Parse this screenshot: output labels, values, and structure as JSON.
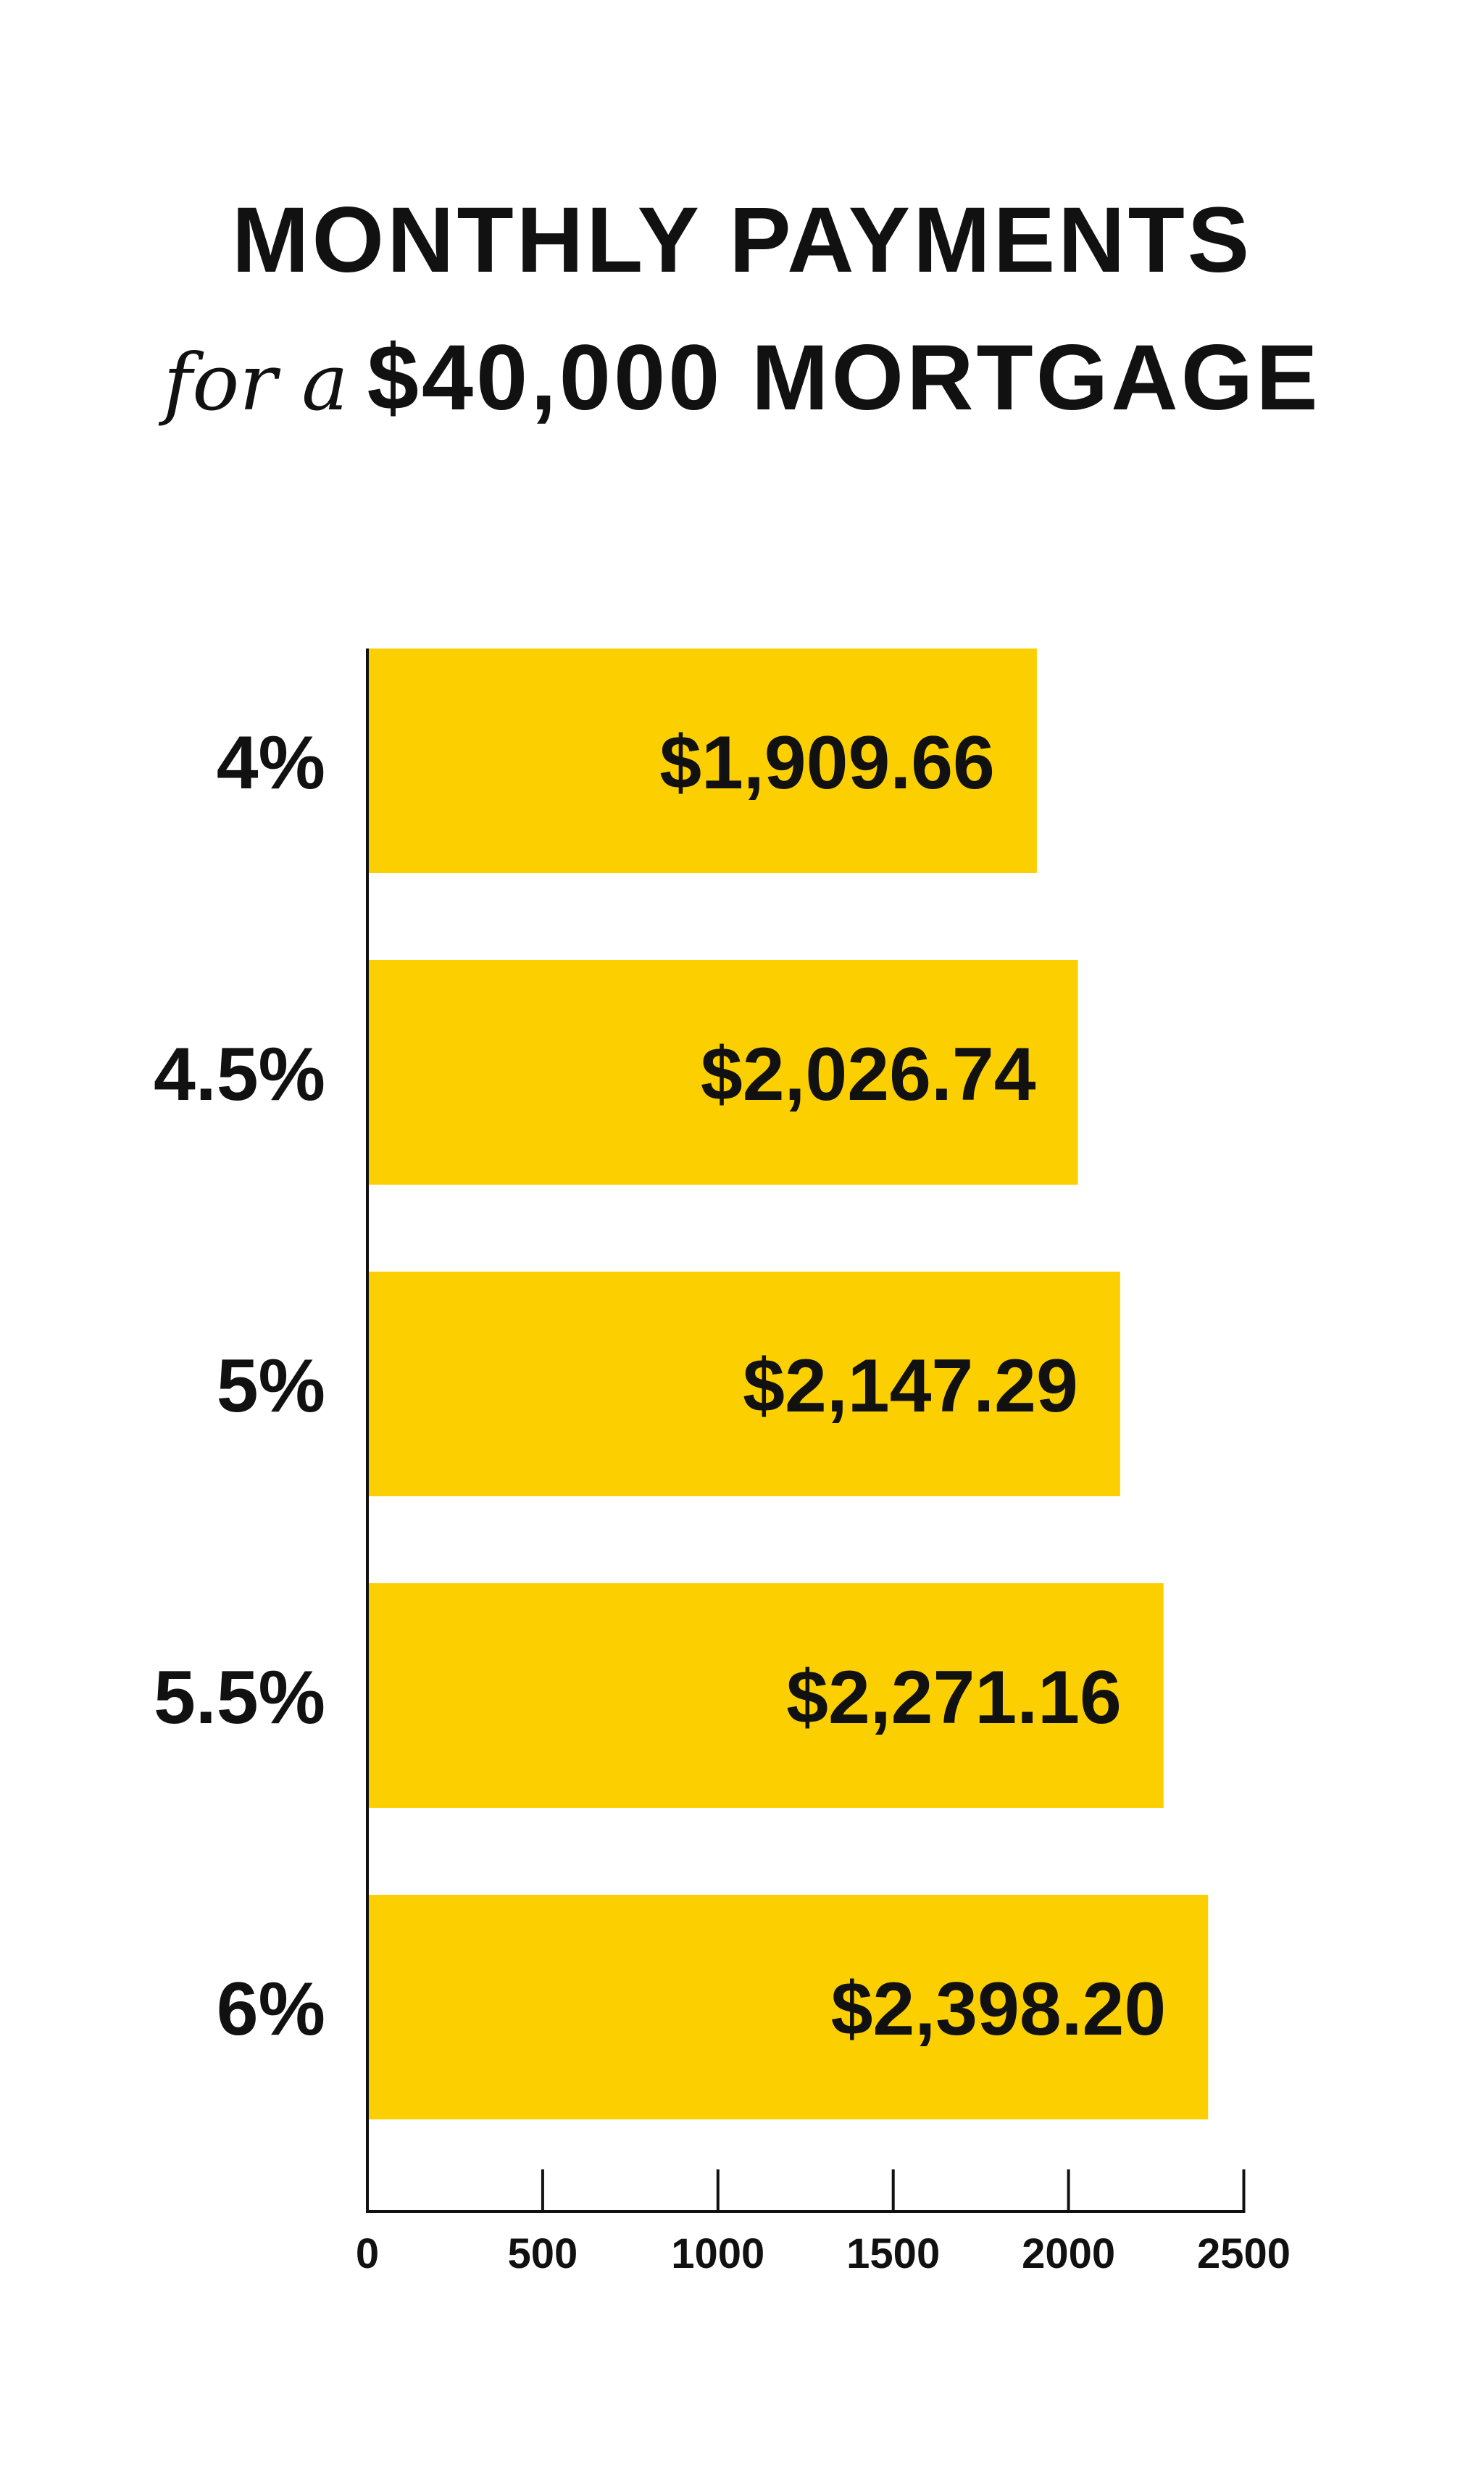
{
  "title": {
    "line1": "MONTHLY PAYMENTS",
    "line2_italic": "for a",
    "line2_bold": "$40,000 MORTGAGE"
  },
  "colors": {
    "bar": "#FCD000",
    "text": "#111111",
    "axis": "#111111",
    "background": "#FFFFFF"
  },
  "chart_data": {
    "type": "bar",
    "orientation": "horizontal",
    "categories": [
      "4%",
      "4.5%",
      "5%",
      "5.5%",
      "6%"
    ],
    "values": [
      1909.66,
      2026.74,
      2147.29,
      2271.16,
      2398.2
    ],
    "data_labels": [
      "$1,909.66",
      "$2,026.74",
      "$2,147.29",
      "$2,271.16",
      "$2,398.20"
    ],
    "xlim": [
      0,
      2500
    ],
    "xticks": [
      0,
      500,
      1000,
      1500,
      2000,
      2500
    ],
    "xtick_labels": [
      "0",
      "500",
      "1000",
      "1500",
      "2000",
      "2500"
    ],
    "grid": false,
    "legend": "none"
  }
}
